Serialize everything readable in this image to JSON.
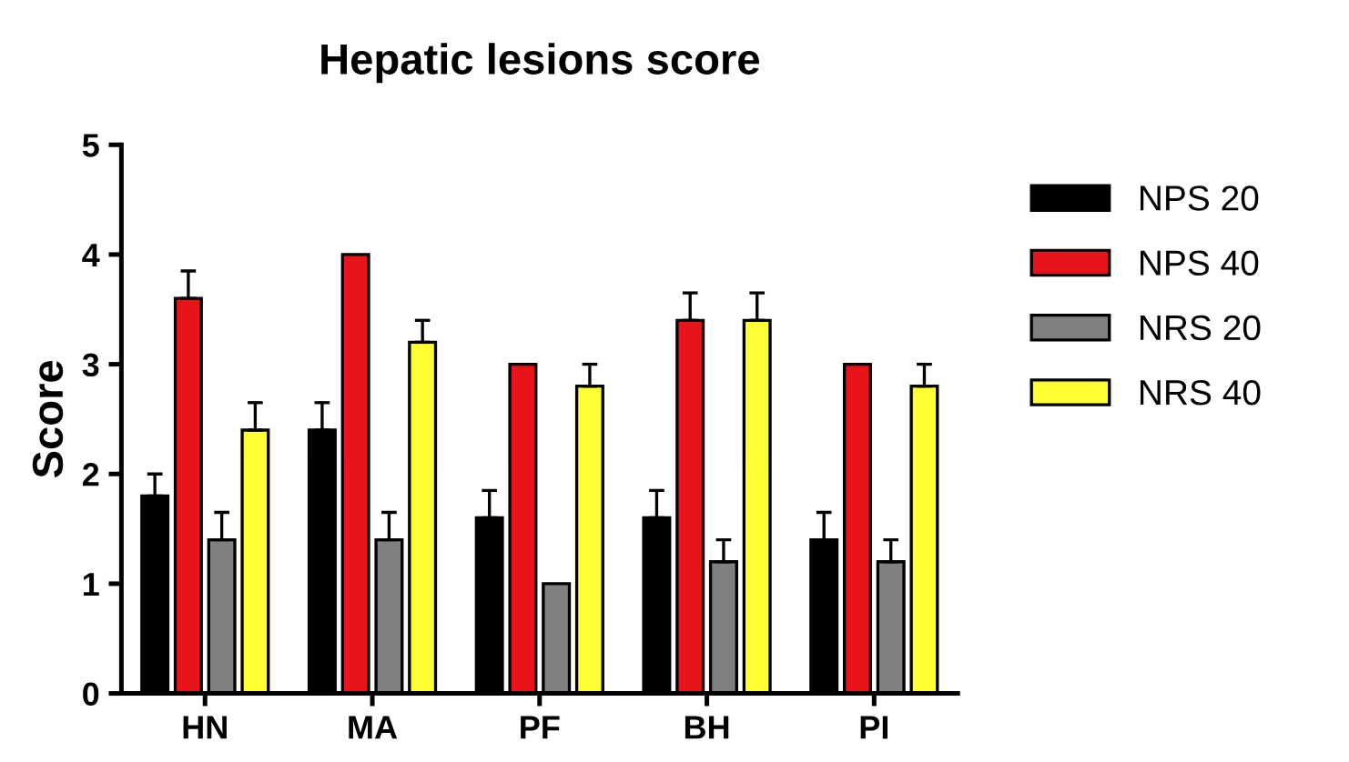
{
  "chart_data": {
    "type": "bar",
    "title": "Hepatic lesions score",
    "ylabel": "Score",
    "categories": [
      "HN",
      "MA",
      "PF",
      "BH",
      "PI"
    ],
    "series": [
      {
        "name": "NPS 20",
        "color": "#000000",
        "values": [
          1.8,
          2.4,
          1.6,
          1.6,
          1.4
        ],
        "errors": [
          [
            1.8,
            2.0
          ],
          [
            2.4,
            2.65
          ],
          [
            1.6,
            1.85
          ],
          [
            1.6,
            1.85
          ],
          [
            1.4,
            1.65
          ]
        ]
      },
      {
        "name": "NPS 40",
        "color": "#e8141a",
        "values": [
          3.6,
          4.0,
          3.0,
          3.4,
          3.0
        ],
        "errors": [
          [
            3.6,
            3.85
          ],
          null,
          null,
          [
            3.4,
            3.65
          ],
          null
        ]
      },
      {
        "name": "NRS 20",
        "color": "#808080",
        "values": [
          1.4,
          1.4,
          1.0,
          1.2,
          1.2
        ],
        "errors": [
          [
            1.4,
            1.65
          ],
          [
            1.4,
            1.65
          ],
          null,
          [
            1.2,
            1.4
          ],
          [
            1.2,
            1.4
          ]
        ]
      },
      {
        "name": "NRS 40",
        "color": "#ffff33",
        "values": [
          2.4,
          3.2,
          2.8,
          3.4,
          2.8
        ],
        "errors": [
          [
            2.4,
            2.65
          ],
          [
            3.2,
            3.4
          ],
          [
            2.8,
            3.0
          ],
          [
            3.4,
            3.65
          ],
          [
            2.8,
            3.0
          ]
        ]
      }
    ],
    "ylim": [
      0,
      5
    ],
    "yticks": [
      0,
      1,
      2,
      3,
      4,
      5
    ],
    "grid": false,
    "legend": "right"
  }
}
